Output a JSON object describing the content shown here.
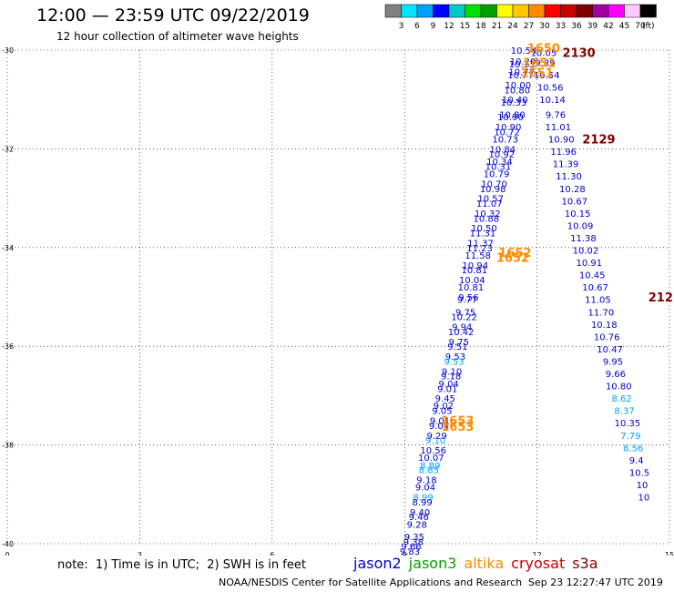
{
  "header": {
    "title": "12:00 — 23:59 UTC 09/22/2019",
    "subtitle": "12 hour collection of altimeter wave heights"
  },
  "legend": {
    "colors": [
      "#808080",
      "#00e5ff",
      "#00a0ff",
      "#0000ff",
      "#00c8c8",
      "#00e000",
      "#00a000",
      "#ffff00",
      "#ffc800",
      "#ff8c00",
      "#ff0000",
      "#c80000",
      "#800000",
      "#a000a0",
      "#ff00ff",
      "#ffc8ff",
      "#000000"
    ],
    "labels": [
      "3",
      "6",
      "9",
      "12",
      "15",
      "18",
      "21",
      "24",
      "27",
      "30",
      "33",
      "36",
      "39",
      "42",
      "45",
      "70",
      "(ft)"
    ]
  },
  "footer": {
    "note": "note:  1) Time is in UTC;  2) SWH is in feet",
    "satellites": [
      {
        "name": "jason2",
        "color": "#0000cc"
      },
      {
        "name": "jason3",
        "color": "#00a000"
      },
      {
        "name": "altika",
        "color": "#ff8c00"
      },
      {
        "name": "cryosat",
        "color": "#cc0000"
      },
      {
        "name": "s3a",
        "color": "#800000"
      }
    ],
    "credit": "NOAA/NESDIS Center for Satellite Applications and Research",
    "timestamp": "Sep 23 12:27:47 UTC 2019"
  },
  "chart_data": {
    "type": "scatter",
    "xlim": [
      0,
      15
    ],
    "ylim": [
      -40,
      -30
    ],
    "xticks": [
      0,
      3,
      6,
      9,
      12,
      15
    ],
    "yticks": [
      -30,
      -32,
      -34,
      -36,
      -38,
      -40
    ],
    "xticklabels": [
      "0",
      "3",
      "6",
      "9",
      "12",
      "15"
    ],
    "yticklabels": [
      "-30",
      "-32",
      "-34",
      "-36",
      "-38",
      "-40"
    ],
    "grid": true,
    "track_points": [
      {
        "x": 11.7,
        "y": -30.0,
        "v": "10.54",
        "c": "#0000cc"
      },
      {
        "x": 11.68,
        "y": -30.22,
        "v": "10.20",
        "c": "#0000cc"
      },
      {
        "x": 11.66,
        "y": -30.28,
        "v": "10.33",
        "c": "#0000cc"
      },
      {
        "x": 11.65,
        "y": -30.43,
        "v": "10.77",
        "c": "#0000cc"
      },
      {
        "x": 11.63,
        "y": -30.5,
        "v": "10.77",
        "c": "#0000cc"
      },
      {
        "x": 11.57,
        "y": -30.7,
        "v": "10.00",
        "c": "#0000cc"
      },
      {
        "x": 11.55,
        "y": -30.8,
        "v": "10.80",
        "c": "#0000cc"
      },
      {
        "x": 11.5,
        "y": -31.0,
        "v": "10.40",
        "c": "#0000cc"
      },
      {
        "x": 11.47,
        "y": -31.05,
        "v": "10.33",
        "c": "#0000cc"
      },
      {
        "x": 11.44,
        "y": -31.3,
        "v": "10.80",
        "c": "#0000cc"
      },
      {
        "x": 11.4,
        "y": -31.35,
        "v": "10.90",
        "c": "#0000cc"
      },
      {
        "x": 11.35,
        "y": -31.55,
        "v": "10.90",
        "c": "#0000cc"
      },
      {
        "x": 11.32,
        "y": -31.65,
        "v": "10.72",
        "c": "#0000cc"
      },
      {
        "x": 11.28,
        "y": -31.8,
        "v": "10.73",
        "c": "#0000cc"
      },
      {
        "x": 11.22,
        "y": -32.0,
        "v": "10.84",
        "c": "#0000cc"
      },
      {
        "x": 11.2,
        "y": -32.1,
        "v": "10.92",
        "c": "#0000cc"
      },
      {
        "x": 11.15,
        "y": -32.25,
        "v": "10.34",
        "c": "#0000cc"
      },
      {
        "x": 11.12,
        "y": -32.35,
        "v": "10.31",
        "c": "#0000cc"
      },
      {
        "x": 11.08,
        "y": -32.5,
        "v": "10.79",
        "c": "#0000cc"
      },
      {
        "x": 11.03,
        "y": -32.7,
        "v": "10.70",
        "c": "#0000cc"
      },
      {
        "x": 11.0,
        "y": -32.8,
        "v": "10.98",
        "c": "#0000cc"
      },
      {
        "x": 10.95,
        "y": -33.0,
        "v": "10.57",
        "c": "#0000cc"
      },
      {
        "x": 10.92,
        "y": -33.1,
        "v": "11.07",
        "c": "#0000cc"
      },
      {
        "x": 10.88,
        "y": -33.3,
        "v": "10.32",
        "c": "#0000cc"
      },
      {
        "x": 10.85,
        "y": -33.4,
        "v": "10.88",
        "c": "#0000cc"
      },
      {
        "x": 10.8,
        "y": -33.6,
        "v": "10.50",
        "c": "#0000cc"
      },
      {
        "x": 10.77,
        "y": -33.7,
        "v": "11.31",
        "c": "#0000cc"
      },
      {
        "x": 10.72,
        "y": -33.9,
        "v": "11.37",
        "c": "#0000cc"
      },
      {
        "x": 10.7,
        "y": -34.0,
        "v": "11.23",
        "c": "#0000cc"
      },
      {
        "x": 10.66,
        "y": -34.15,
        "v": "11.58",
        "c": "#0000cc"
      },
      {
        "x": 10.6,
        "y": -34.35,
        "v": "10.94",
        "c": "#0000cc"
      },
      {
        "x": 10.58,
        "y": -34.45,
        "v": "10.81",
        "c": "#0000cc"
      },
      {
        "x": 10.53,
        "y": -34.65,
        "v": "10.04",
        "c": "#0000cc"
      },
      {
        "x": 10.5,
        "y": -34.8,
        "v": "10.81",
        "c": "#0000cc"
      },
      {
        "x": 10.45,
        "y": -35.0,
        "v": "9.56",
        "c": "#0000cc"
      },
      {
        "x": 10.42,
        "y": -35.05,
        "v": "9.77",
        "c": "#0000cc"
      },
      {
        "x": 10.38,
        "y": -35.3,
        "v": "9.75",
        "c": "#0000cc"
      },
      {
        "x": 10.35,
        "y": -35.4,
        "v": "10.22",
        "c": "#0000cc"
      },
      {
        "x": 10.3,
        "y": -35.6,
        "v": "9.94",
        "c": "#0000cc"
      },
      {
        "x": 10.28,
        "y": -35.7,
        "v": "10.42",
        "c": "#0000cc"
      },
      {
        "x": 10.23,
        "y": -35.9,
        "v": "9.75",
        "c": "#0000cc"
      },
      {
        "x": 10.2,
        "y": -36.0,
        "v": "9.51",
        "c": "#0000cc"
      },
      {
        "x": 10.15,
        "y": -36.2,
        "v": "9.53",
        "c": "#0000cc"
      },
      {
        "x": 10.12,
        "y": -36.3,
        "v": "9.53",
        "c": "#00a0ff"
      },
      {
        "x": 10.07,
        "y": -36.5,
        "v": "9.10",
        "c": "#0000cc"
      },
      {
        "x": 10.05,
        "y": -36.6,
        "v": "9.18",
        "c": "#0000cc"
      },
      {
        "x": 10.0,
        "y": -36.75,
        "v": "9.04",
        "c": "#0000cc"
      },
      {
        "x": 9.97,
        "y": -36.85,
        "v": "9.01",
        "c": "#0000cc"
      },
      {
        "x": 9.92,
        "y": -37.05,
        "v": "9.45",
        "c": "#0000cc"
      },
      {
        "x": 9.88,
        "y": -37.2,
        "v": "9.02",
        "c": "#0000cc"
      },
      {
        "x": 9.85,
        "y": -37.3,
        "v": "9.05",
        "c": "#0000cc"
      },
      {
        "x": 9.8,
        "y": -37.5,
        "v": "9.01",
        "c": "#0000cc"
      },
      {
        "x": 9.78,
        "y": -37.6,
        "v": "9.04",
        "c": "#0000cc"
      },
      {
        "x": 9.73,
        "y": -37.8,
        "v": "9.29",
        "c": "#0000cc"
      },
      {
        "x": 9.7,
        "y": -37.9,
        "v": "9.10",
        "c": "#00a0ff"
      },
      {
        "x": 9.65,
        "y": -38.1,
        "v": "10.56",
        "c": "#0000cc"
      },
      {
        "x": 9.6,
        "y": -38.25,
        "v": "10.07",
        "c": "#0000cc"
      },
      {
        "x": 9.58,
        "y": -38.4,
        "v": "8.89",
        "c": "#00a0ff"
      },
      {
        "x": 9.55,
        "y": -38.5,
        "v": "8.85",
        "c": "#00a0ff"
      },
      {
        "x": 9.5,
        "y": -38.7,
        "v": "9.18",
        "c": "#0000cc"
      },
      {
        "x": 9.47,
        "y": -38.85,
        "v": "9.04",
        "c": "#0000cc"
      },
      {
        "x": 9.42,
        "y": -39.05,
        "v": "8.99",
        "c": "#00a0ff"
      },
      {
        "x": 9.4,
        "y": -39.15,
        "v": "8.99",
        "c": "#0000cc"
      },
      {
        "x": 9.35,
        "y": -39.35,
        "v": "9.40",
        "c": "#0000cc"
      },
      {
        "x": 9.32,
        "y": -39.45,
        "v": "9.46",
        "c": "#0000cc"
      },
      {
        "x": 9.28,
        "y": -39.6,
        "v": "9.28",
        "c": "#0000cc"
      },
      {
        "x": 9.22,
        "y": -39.85,
        "v": "9.35",
        "c": "#0000cc"
      },
      {
        "x": 9.2,
        "y": -39.95,
        "v": "9.38",
        "c": "#0000cc"
      },
      {
        "x": 9.15,
        "y": -40.05,
        "v": "9.66",
        "c": "#0000cc"
      },
      {
        "x": 9.12,
        "y": -40.15,
        "v": "9.83",
        "c": "#0000cc"
      },
      {
        "x": 9.08,
        "y": -40.3,
        "v": "10.49",
        "c": "#0000cc"
      },
      {
        "x": 9.05,
        "y": -40.45,
        "v": "10.49",
        "c": "#0000cc"
      },
      {
        "x": 9.02,
        "y": -40.55,
        "v": "10.29",
        "c": "#0000cc"
      },
      {
        "x": 9.0,
        "y": -40.65,
        "v": "9.80",
        "c": "#0000cc"
      },
      {
        "x": 8.98,
        "y": -40.7,
        "v": "9.89",
        "c": "#0000cc"
      },
      {
        "x": 12.15,
        "y": -30.05,
        "v": "10.05",
        "c": "#0000cc"
      },
      {
        "x": 12.18,
        "y": -30.25,
        "v": "9.39",
        "c": "#0000cc"
      },
      {
        "x": 12.22,
        "y": -30.5,
        "v": "10.54",
        "c": "#0000cc"
      },
      {
        "x": 12.3,
        "y": -30.75,
        "v": "10.56",
        "c": "#0000cc"
      },
      {
        "x": 12.35,
        "y": -31.0,
        "v": "10.14",
        "c": "#0000cc"
      },
      {
        "x": 12.42,
        "y": -31.3,
        "v": "9.76",
        "c": "#0000cc"
      },
      {
        "x": 12.48,
        "y": -31.55,
        "v": "11.01",
        "c": "#0000cc"
      },
      {
        "x": 12.55,
        "y": -31.8,
        "v": "10.90",
        "c": "#0000cc"
      },
      {
        "x": 12.6,
        "y": -32.05,
        "v": "11.96",
        "c": "#0000cc"
      },
      {
        "x": 12.65,
        "y": -32.3,
        "v": "11.39",
        "c": "#0000cc"
      },
      {
        "x": 12.72,
        "y": -32.55,
        "v": "11.30",
        "c": "#0000cc"
      },
      {
        "x": 12.8,
        "y": -32.8,
        "v": "10.28",
        "c": "#0000cc"
      },
      {
        "x": 12.85,
        "y": -33.05,
        "v": "10.67",
        "c": "#0000cc"
      },
      {
        "x": 12.92,
        "y": -33.3,
        "v": "10.15",
        "c": "#0000cc"
      },
      {
        "x": 12.98,
        "y": -33.55,
        "v": "10.09",
        "c": "#0000cc"
      },
      {
        "x": 13.05,
        "y": -33.8,
        "v": "11.38",
        "c": "#0000cc"
      },
      {
        "x": 13.1,
        "y": -34.05,
        "v": "10.02",
        "c": "#0000cc"
      },
      {
        "x": 13.18,
        "y": -34.3,
        "v": "10.91",
        "c": "#0000cc"
      },
      {
        "x": 13.25,
        "y": -34.55,
        "v": "10.45",
        "c": "#0000cc"
      },
      {
        "x": 13.32,
        "y": -34.8,
        "v": "10.67",
        "c": "#0000cc"
      },
      {
        "x": 13.38,
        "y": -35.05,
        "v": "11.05",
        "c": "#0000cc"
      },
      {
        "x": 13.45,
        "y": -35.3,
        "v": "11.70",
        "c": "#0000cc"
      },
      {
        "x": 13.52,
        "y": -35.55,
        "v": "10.18",
        "c": "#0000cc"
      },
      {
        "x": 13.58,
        "y": -35.8,
        "v": "10.76",
        "c": "#0000cc"
      },
      {
        "x": 13.65,
        "y": -36.05,
        "v": "10.47",
        "c": "#0000cc"
      },
      {
        "x": 13.72,
        "y": -36.3,
        "v": "9.95",
        "c": "#0000cc"
      },
      {
        "x": 13.78,
        "y": -36.55,
        "v": "9.66",
        "c": "#0000cc"
      },
      {
        "x": 13.85,
        "y": -36.8,
        "v": "10.80",
        "c": "#0000cc"
      },
      {
        "x": 13.92,
        "y": -37.05,
        "v": "8.62",
        "c": "#00a0ff"
      },
      {
        "x": 13.98,
        "y": -37.3,
        "v": "8.37",
        "c": "#00a0ff"
      },
      {
        "x": 14.05,
        "y": -37.55,
        "v": "10.35",
        "c": "#0000cc"
      },
      {
        "x": 14.12,
        "y": -37.8,
        "v": "7.79",
        "c": "#00a0ff"
      },
      {
        "x": 14.18,
        "y": -38.05,
        "v": "8.56",
        "c": "#00a0ff"
      },
      {
        "x": 14.25,
        "y": -38.3,
        "v": "9.4",
        "c": "#0000cc"
      },
      {
        "x": 14.32,
        "y": -38.55,
        "v": "10.5",
        "c": "#0000cc"
      },
      {
        "x": 14.38,
        "y": -38.8,
        "v": "10",
        "c": "#0000cc"
      },
      {
        "x": 14.42,
        "y": -39.05,
        "v": "10",
        "c": "#0000cc"
      }
    ],
    "time_labels": [
      {
        "x": 12.15,
        "y": -29.95,
        "v": "1650",
        "c": "#ff8c00"
      },
      {
        "x": 12.05,
        "y": -30.25,
        "v": "1651",
        "c": "#ff8c00"
      },
      {
        "x": 12.0,
        "y": -30.45,
        "v": "1651",
        "c": "#ff8c00"
      },
      {
        "x": 12.95,
        "y": -30.05,
        "v": "2130",
        "c": "#800000"
      },
      {
        "x": 13.4,
        "y": -31.8,
        "v": "2129",
        "c": "#800000"
      },
      {
        "x": 14.8,
        "y": -35.0,
        "v": "212",
        "c": "#800000"
      },
      {
        "x": 11.5,
        "y": -34.1,
        "v": "1652",
        "c": "#ff8c00"
      },
      {
        "x": 11.45,
        "y": -34.2,
        "v": "1652",
        "c": "#ff8c00"
      },
      {
        "x": 10.2,
        "y": -37.5,
        "v": "1653",
        "c": "#ff8c00"
      },
      {
        "x": 10.2,
        "y": -37.62,
        "v": "1653",
        "c": "#ff8c00"
      }
    ]
  }
}
